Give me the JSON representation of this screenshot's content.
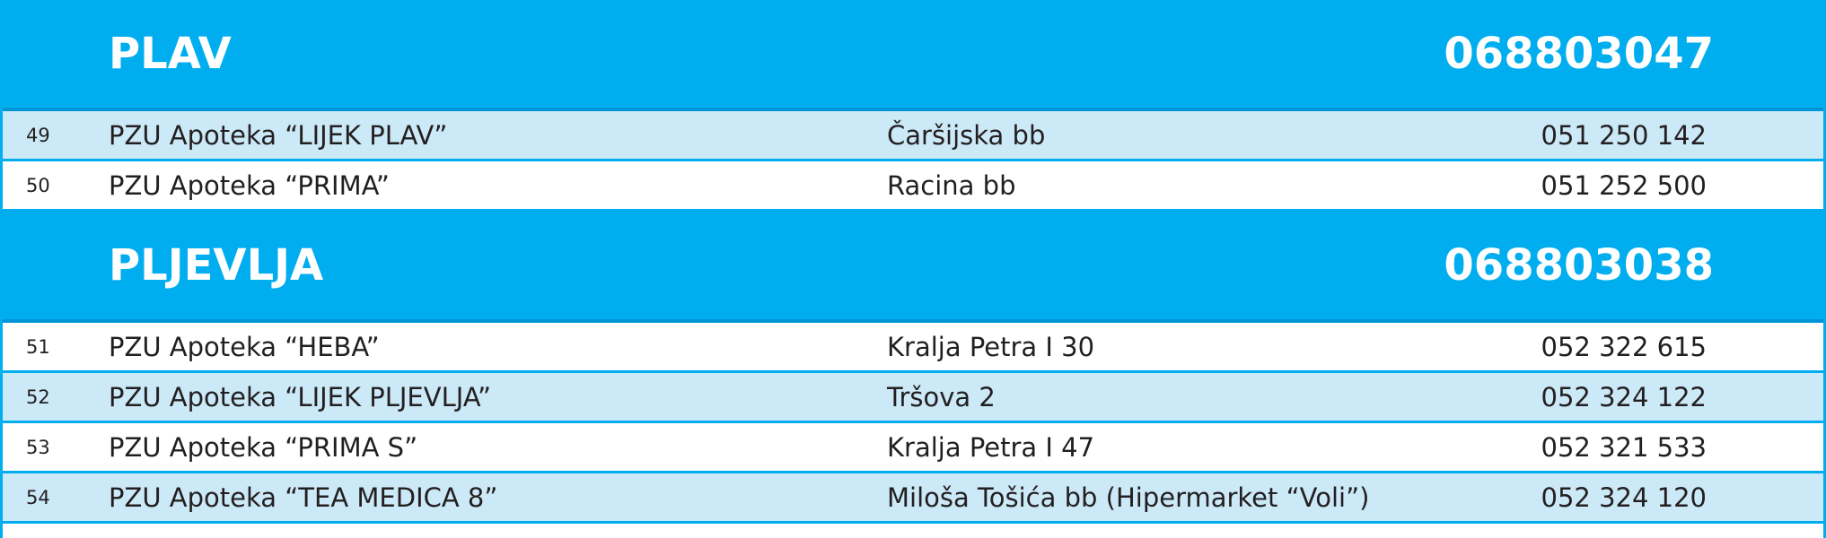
{
  "sections": [
    {
      "city": "PLAV",
      "phone": "068803047",
      "rows": [
        [
          "49",
          "PZU Apoteka “LIJEK PLAV”",
          "Čaršijska bb",
          "051 250 142"
        ],
        [
          "50",
          "PZU Apoteka “PRIMA”",
          "Racina bb",
          "051 252 500"
        ]
      ]
    },
    {
      "city": "PLJEVLJA",
      "phone": "068803038",
      "rows": [
        [
          "51",
          "PZU Apoteka “HEBA”",
          "Kralja Petra I 30",
          "052 322 615"
        ],
        [
          "52",
          "PZU Apoteka “LIJEK PLJEVLJA”",
          "Tršova 2",
          "052 324 122"
        ],
        [
          "53",
          "PZU Apoteka “PRIMA S”",
          "Kralja Petra I 47",
          "052 321 533"
        ],
        [
          "54",
          "PZU Apoteka “TEA MEDICA 8”",
          "Miloša Tošića bb (Hipermarket “Voli”)",
          "052 324 120"
        ]
      ]
    }
  ]
}
